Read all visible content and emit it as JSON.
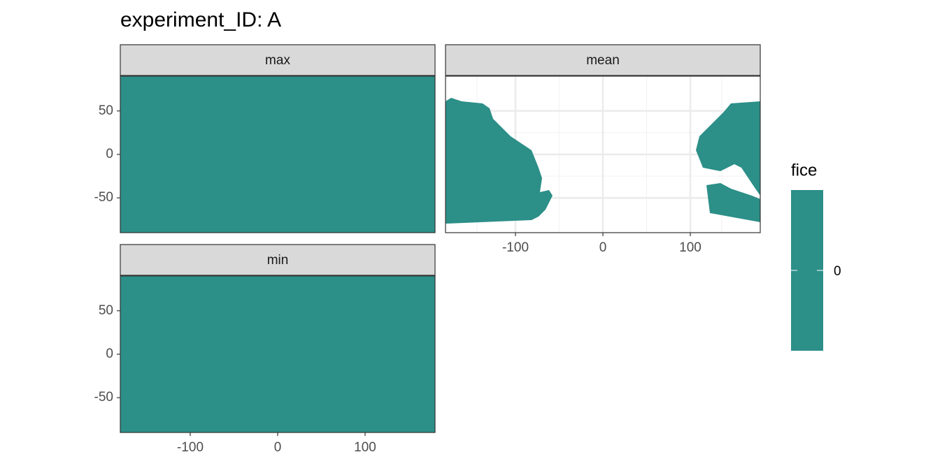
{
  "chart_data": {
    "type": "raster",
    "title": "experiment_ID: A",
    "panels": [
      {
        "label": "max",
        "value": 0,
        "coverage": "full"
      },
      {
        "label": "mean",
        "value": 0,
        "coverage": "partial"
      },
      {
        "label": "min",
        "value": 0,
        "coverage": "full"
      }
    ],
    "xlim": [
      -180,
      180
    ],
    "xticks": [
      -100,
      0,
      100
    ],
    "ylim": [
      -90,
      90
    ],
    "yticks": [
      -50,
      0,
      50
    ],
    "grid": true,
    "legend": {
      "title": "fice",
      "ticks": [
        0
      ],
      "color": "#2c8f88",
      "position": "right"
    }
  }
}
